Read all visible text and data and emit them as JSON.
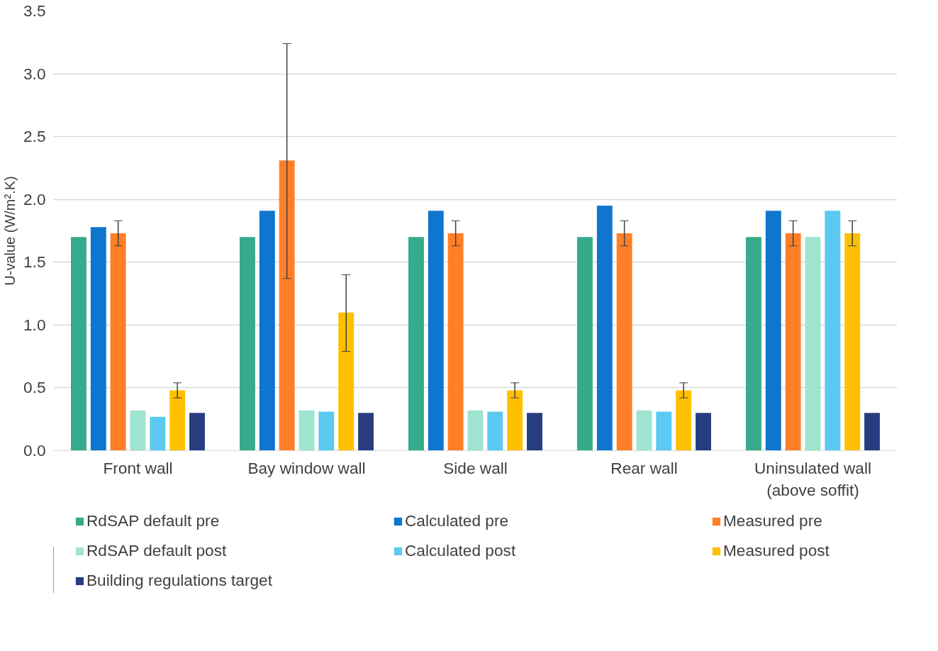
{
  "chart_data": {
    "type": "bar",
    "ylabel": "U-value (W/m².K)",
    "categories": [
      "Front wall",
      "Bay window wall",
      "Side wall",
      "Rear wall",
      "Uninsulated wall\n(above soffit)"
    ],
    "series": [
      {
        "name": "RdSAP default pre",
        "color": "#35ab8b",
        "values": [
          1.7,
          1.7,
          1.7,
          1.7,
          1.7
        ]
      },
      {
        "name": "Calculated pre",
        "color": "#0e76ce",
        "values": [
          1.78,
          1.91,
          1.91,
          1.95,
          1.91
        ]
      },
      {
        "name": "Measured pre",
        "color": "#ff7f27",
        "values": [
          1.73,
          2.31,
          1.73,
          1.73,
          1.73
        ],
        "errors": [
          [
            1.63,
            1.83
          ],
          [
            1.37,
            3.24
          ],
          [
            1.63,
            1.83
          ],
          [
            1.63,
            1.83
          ],
          [
            1.63,
            1.83
          ]
        ]
      },
      {
        "name": "RdSAP default post",
        "color": "#9fe3d1",
        "values": [
          0.32,
          0.32,
          0.32,
          0.32,
          1.7
        ]
      },
      {
        "name": "Calculated post",
        "color": "#5bc9f2",
        "values": [
          0.27,
          0.31,
          0.31,
          0.31,
          1.91
        ]
      },
      {
        "name": "Measured post",
        "color": "#ffc000",
        "values": [
          0.48,
          1.1,
          0.48,
          0.48,
          1.73
        ],
        "errors": [
          [
            0.42,
            0.54
          ],
          [
            0.79,
            1.4
          ],
          [
            0.42,
            0.54
          ],
          [
            0.42,
            0.54
          ],
          [
            1.63,
            1.83
          ]
        ]
      },
      {
        "name": "Building regulations target",
        "color": "#283c80",
        "values": [
          0.3,
          0.3,
          0.3,
          0.3,
          0.3
        ]
      }
    ],
    "ylim": [
      0,
      3.5
    ],
    "yticks": [
      {
        "value": 0,
        "label": "0.0"
      },
      0.5,
      {
        "value": 1,
        "label": "1.0"
      },
      1.5,
      {
        "value": 2,
        "label": "2.0"
      },
      2.5,
      {
        "value": 3,
        "label": "3.0"
      },
      3.5
    ],
    "grid": "y",
    "legend": "bottom"
  }
}
